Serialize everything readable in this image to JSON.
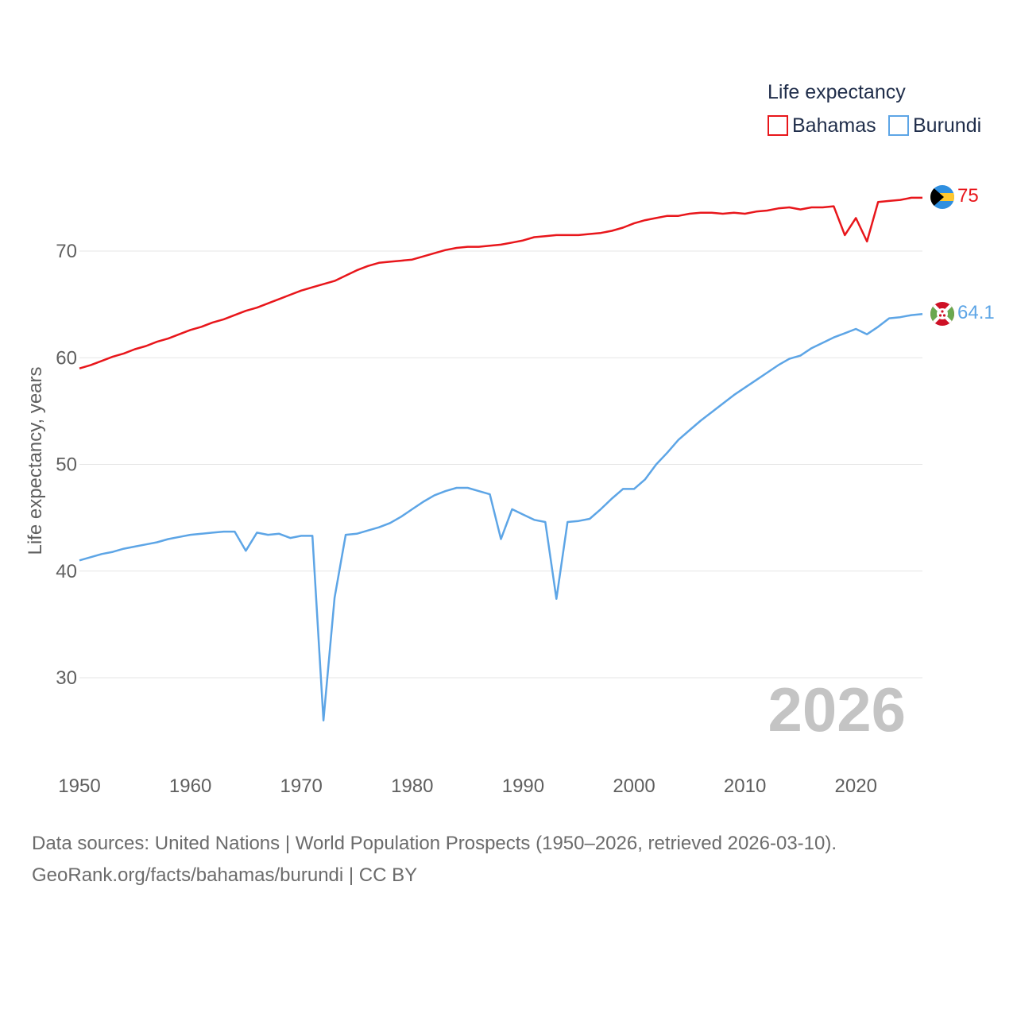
{
  "chart_data": {
    "type": "line",
    "title": "Life expectancy",
    "ylabel": "Life expectancy, years",
    "xlabel": "",
    "xlim": [
      1950,
      2026
    ],
    "ylim": [
      23,
      79
    ],
    "x_ticks": [
      1950,
      1960,
      1970,
      1980,
      1990,
      2000,
      2010,
      2020
    ],
    "y_ticks": [
      30,
      40,
      50,
      60,
      70
    ],
    "current_year": "2026",
    "x": [
      1950,
      1951,
      1952,
      1953,
      1954,
      1955,
      1956,
      1957,
      1958,
      1959,
      1960,
      1961,
      1962,
      1963,
      1964,
      1965,
      1966,
      1967,
      1968,
      1969,
      1970,
      1971,
      1972,
      1973,
      1974,
      1975,
      1976,
      1977,
      1978,
      1979,
      1980,
      1981,
      1982,
      1983,
      1984,
      1985,
      1986,
      1987,
      1988,
      1989,
      1990,
      1991,
      1992,
      1993,
      1994,
      1995,
      1996,
      1997,
      1998,
      1999,
      2000,
      2001,
      2002,
      2003,
      2004,
      2005,
      2006,
      2007,
      2008,
      2009,
      2010,
      2011,
      2012,
      2013,
      2014,
      2015,
      2016,
      2017,
      2018,
      2019,
      2020,
      2021,
      2022,
      2023,
      2024,
      2025,
      2026
    ],
    "series": [
      {
        "name": "Bahamas",
        "color": "#e8161b",
        "end_label": "75",
        "values": [
          59.0,
          59.3,
          59.7,
          60.1,
          60.4,
          60.8,
          61.1,
          61.5,
          61.8,
          62.2,
          62.6,
          62.9,
          63.3,
          63.6,
          64.0,
          64.4,
          64.7,
          65.1,
          65.5,
          65.9,
          66.3,
          66.6,
          66.9,
          67.2,
          67.7,
          68.2,
          68.6,
          68.9,
          69.0,
          69.1,
          69.2,
          69.5,
          69.8,
          70.1,
          70.3,
          70.4,
          70.4,
          70.5,
          70.6,
          70.8,
          71.0,
          71.3,
          71.4,
          71.5,
          71.5,
          71.5,
          71.6,
          71.7,
          71.9,
          72.2,
          72.6,
          72.9,
          73.1,
          73.3,
          73.3,
          73.5,
          73.6,
          73.6,
          73.5,
          73.6,
          73.5,
          73.7,
          73.8,
          74.0,
          74.1,
          73.9,
          74.1,
          74.1,
          74.2,
          71.5,
          73.1,
          70.9,
          74.6,
          74.7,
          74.8,
          75.0,
          75.0
        ]
      },
      {
        "name": "Burundi",
        "color": "#5da5e6",
        "end_label": "64.1",
        "values": [
          41.0,
          41.3,
          41.6,
          41.8,
          42.1,
          42.3,
          42.5,
          42.7,
          43.0,
          43.2,
          43.4,
          43.5,
          43.6,
          43.7,
          43.7,
          41.9,
          43.6,
          43.4,
          43.5,
          43.1,
          43.3,
          43.3,
          26.0,
          37.5,
          43.4,
          43.5,
          43.8,
          44.1,
          44.5,
          45.1,
          45.8,
          46.5,
          47.1,
          47.5,
          47.8,
          47.8,
          47.5,
          47.2,
          43.0,
          45.8,
          45.3,
          44.8,
          44.6,
          37.4,
          44.6,
          44.7,
          44.9,
          45.8,
          46.8,
          47.7,
          47.7,
          48.6,
          50.0,
          51.1,
          52.3,
          53.2,
          54.1,
          54.9,
          55.7,
          56.5,
          57.2,
          57.9,
          58.6,
          59.3,
          59.9,
          60.2,
          60.9,
          61.4,
          61.9,
          62.3,
          62.7,
          62.2,
          62.9,
          63.7,
          63.8,
          64.0,
          64.1
        ]
      }
    ]
  },
  "legend": {
    "title": "Life expectancy",
    "items": [
      "Bahamas",
      "Burundi"
    ]
  },
  "flags": {
    "bahamas": {
      "name": "bahamas-flag-icon",
      "colors": [
        "#00778b",
        "#ffc72c",
        "#000000"
      ]
    },
    "burundi": {
      "name": "burundi-flag-icon",
      "colors": [
        "#ce1126",
        "#1eb53a",
        "#ffffff"
      ]
    }
  },
  "footer": {
    "sources": "Data sources: United Nations | World Population Prospects (1950–2026, retrieved 2026-03-10).",
    "attribution": "GeoRank.org/facts/bahamas/burundi | CC BY"
  }
}
